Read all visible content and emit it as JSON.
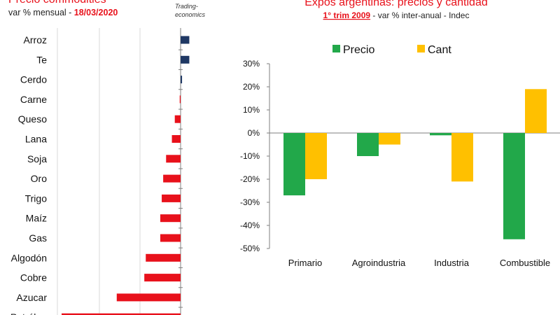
{
  "left_panel": {
    "title": "Precio commodities",
    "subtitle_prefix": "var % mensual - ",
    "subtitle_date": "18/03/2020",
    "source_line1": "Trading-",
    "source_line2": "economics"
  },
  "right_panel": {
    "title": "Expos argentinas: precios y cantidad",
    "subtitle_period": "1° trim 2009",
    "subtitle_rest": " - var % inter-anual  - Indec"
  },
  "colors": {
    "positive": "#1f3864",
    "negative": "#e8111b",
    "precio": "#22a84a",
    "cant": "#ffc000",
    "title_red": "#e8111b",
    "grid": "#d9d9d9"
  },
  "chart_data": [
    {
      "type": "bar",
      "orientation": "horizontal",
      "title": "Precio commodities",
      "subtitle": "var % mensual - 18/03/2020",
      "categories": [
        "Arroz",
        "Te",
        "Cerdo",
        "Carne",
        "Queso",
        "Lana",
        "Soja",
        "Oro",
        "Trigo",
        "Maíz",
        "Gas",
        "Algodón",
        "Cobre",
        "Azucar",
        "Petróleo"
      ],
      "values": [
        3,
        3,
        0.5,
        -0.3,
        -2,
        -3,
        -5,
        -6,
        -6.5,
        -7,
        -7,
        -12,
        -12.5,
        -22,
        -41
      ],
      "xlim": [
        -45,
        5
      ],
      "grid": true,
      "note": "values estimated from bar lengths; no axis printed"
    },
    {
      "type": "bar",
      "title": "Expos argentinas: precios y cantidad",
      "subtitle": "1° trim 2009 - var % inter-anual - Indec",
      "categories": [
        "Primario",
        "Agroindustria",
        "Industria",
        "Combustible"
      ],
      "series": [
        {
          "name": "Precio",
          "values": [
            -27,
            -10,
            -1,
            -46
          ]
        },
        {
          "name": "Cant",
          "values": [
            -20,
            -5,
            -21,
            19
          ]
        }
      ],
      "ylim": [
        -50,
        30
      ],
      "yticks": [
        "30%",
        "20%",
        "10%",
        "0%",
        "-10%",
        "-20%",
        "-30%",
        "-40%",
        "-50%"
      ],
      "legend": "top",
      "grid": false
    }
  ]
}
